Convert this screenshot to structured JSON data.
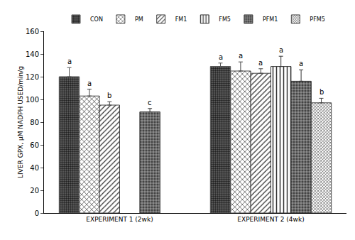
{
  "chart_data": {
    "type": "bar",
    "y_label": "LIVER GPX, μM NADPH USED/min/g",
    "categories": [
      "EXPERIMENT 1 (2wk)",
      "EXPERIMENT 2 (4wk)"
    ],
    "series": [
      {
        "name": "CON",
        "color": "#555555",
        "values": [
          120,
          129
        ],
        "errors": [
          8,
          3
        ],
        "letters": [
          "a",
          "a"
        ]
      },
      {
        "name": "PM",
        "color": "#444444",
        "values": [
          103,
          125
        ],
        "errors": [
          6,
          8
        ],
        "letters": [
          "a",
          "a"
        ]
      },
      {
        "name": "FM1",
        "color": "#444444",
        "values": [
          95,
          123
        ],
        "errors": [
          3,
          4
        ],
        "letters": [
          "b",
          "a"
        ]
      },
      {
        "name": "FM5",
        "color": "#333333",
        "values": [
          null,
          129
        ],
        "errors": [
          null,
          9
        ],
        "letters": [
          null,
          "a"
        ]
      },
      {
        "name": "PFM1",
        "color": "#333333",
        "values": [
          89,
          116
        ],
        "errors": [
          3,
          10
        ],
        "letters": [
          "c",
          "a"
        ]
      },
      {
        "name": "PFM5",
        "color": "#444444",
        "values": [
          null,
          97
        ],
        "errors": [
          null,
          4
        ],
        "letters": [
          null,
          "b"
        ]
      }
    ],
    "ylim": [
      0,
      160
    ],
    "yticks": [
      0,
      20,
      40,
      60,
      80,
      100,
      120,
      140,
      160
    ],
    "grid": false,
    "legend": "top"
  }
}
